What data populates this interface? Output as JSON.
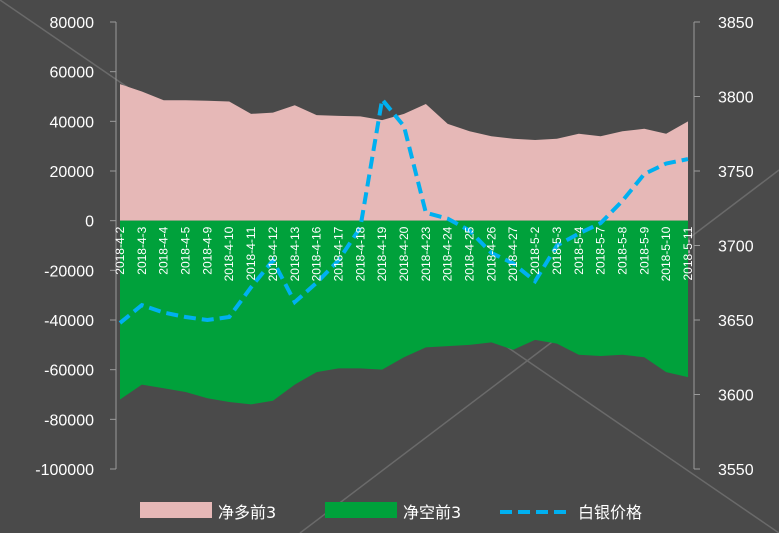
{
  "chart_data": {
    "type": "area",
    "categories": [
      "2018-4-2",
      "2018-4-3",
      "2018-4-4",
      "2018-4-5",
      "2018-4-9",
      "2018-4-10",
      "2018-4-11",
      "2018-4-12",
      "2018-4-13",
      "2018-4-16",
      "2018-4-17",
      "2018-4-18",
      "2018-4-19",
      "2018-4-20",
      "2018-4-23",
      "2018-4-24",
      "2018-4-25",
      "2018-4-26",
      "2018-4-27",
      "2018-5-2",
      "2018-5-3",
      "2018-5-4",
      "2018-5-7",
      "2018-5-8",
      "2018-5-9",
      "2018-5-10",
      "2018-5-11"
    ],
    "series": [
      {
        "name": "净多前3",
        "type": "area",
        "axis": "left",
        "color": "#e6b8b7",
        "values": [
          55000,
          52000,
          48500,
          48500,
          48300,
          48000,
          43000,
          43500,
          46500,
          42500,
          42200,
          42000,
          40500,
          43000,
          47000,
          39000,
          36000,
          34000,
          33000,
          32500,
          33000,
          35000,
          34000,
          36000,
          37000,
          35000,
          40000
        ]
      },
      {
        "name": "净空前3",
        "type": "area",
        "axis": "left",
        "color": "#00a13b",
        "values": [
          -72000,
          -66000,
          -67500,
          -69000,
          -71500,
          -73000,
          -74000,
          -72500,
          -66000,
          -61000,
          -59500,
          -59500,
          -60000,
          -55000,
          -51000,
          -50500,
          -50000,
          -49000,
          -52000,
          -48000,
          -49500,
          -54000,
          -54500,
          -54000,
          -55000,
          -61000,
          -63000
        ]
      },
      {
        "name": "白银价格",
        "type": "line",
        "axis": "right",
        "color": "#00b0f0",
        "dash": true,
        "values": [
          3648,
          3660,
          3655,
          3652,
          3650,
          3652,
          3672,
          3690,
          3662,
          3675,
          3690,
          3712,
          3798,
          3780,
          3722,
          3718,
          3710,
          3695,
          3688,
          3676,
          3700,
          3708,
          3715,
          3730,
          3748,
          3755,
          3758
        ]
      }
    ],
    "y_left": {
      "ticks": [
        "80000",
        "60000",
        "40000",
        "20000",
        "0",
        "-20000",
        "-40000",
        "-60000",
        "-80000",
        "-100000"
      ],
      "range": [
        -100000,
        80000
      ]
    },
    "y_right": {
      "ticks": [
        "3850",
        "3800",
        "3750",
        "3700",
        "3650",
        "3600",
        "3550"
      ],
      "range": [
        3550,
        3850
      ]
    },
    "legend": {
      "position": "bottom"
    },
    "grid": false
  }
}
